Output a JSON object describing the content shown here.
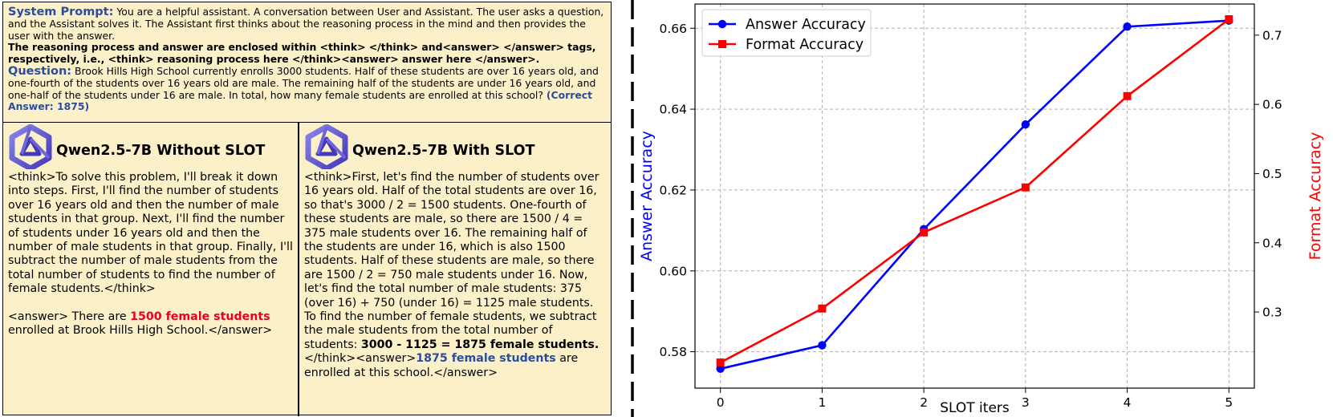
{
  "prompt": {
    "system_label": "System Prompt:",
    "system_text": " You are a helpful assistant. A conversation between User and Assistant. The user asks a question, and the Assistant solves it. The Assistant first thinks about the reasoning process in the mind and then provides the user with the answer.",
    "format_text": "The reasoning process and answer are enclosed within <think> </think> and<answer> </answer> tags, respectively, i.e., <think> reasoning process here </think><answer> answer here </answer>.",
    "question_label": "Question:",
    "question_text": " Brook Hills High School currently enrolls 3000 students. Half of these students are over 16 years old, and one-fourth of the students over 16 years old are male. The remaining half of the students are under 16 years old, and one-half of the students under 16 are male. In total, how many female students are enrolled at this school? ",
    "correct_answer": "(Correct Answer: 1875)"
  },
  "without_slot": {
    "title": "Qwen2.5-7B Without SLOT",
    "think": "<think>To solve this problem, I'll break it down into steps. First, I'll find the number of students over 16 years old and then the number of male students in that group. Next, I'll find the number of students under 16 years old and then the number of male students in that group. Finally, I'll subtract the number of male students from the total number of students to find the number of female students.</think>",
    "answer_pre": "<answer> There are ",
    "answer_highlight": "1500 female students",
    "answer_post": " enrolled at Brook Hills High School.</answer>"
  },
  "with_slot": {
    "title": "Qwen2.5-7B With SLOT",
    "think": "<think>First, let's find the number of students over 16 years old. Half of the total students are over 16, so that's 3000 / 2 = 1500 students. One-fourth of these students are male, so there are 1500 / 4 = 375 male students over 16. The remaining half of the students are under 16, which is also 1500 students. Half of these students are male, so there are 1500 / 2 = 750 male students under 16. Now, let's find the total number of male students: 375 (over 16) + 750 (under 16) = 1125 male students. To find the number of female students, we subtract the male students from the total number of students: ",
    "think_bold": "3000 - 1125 = 1875 female students.",
    "tail": " </think><answer>",
    "answer_highlight": "1875 female students",
    "answer_post": " are enrolled at this school.</answer>"
  },
  "colors": {
    "panel_bg": "#fcf0c9",
    "prompt_blue": "#2c4c9e",
    "highlight_red": "#e8001c",
    "answer_series": "#0000ff",
    "format_series": "#ff0000"
  },
  "chart_data": {
    "type": "line",
    "x": [
      0,
      1,
      2,
      3,
      4,
      5
    ],
    "xlabel": "SLOT iters",
    "x_ticks": [
      "0",
      "1",
      "2",
      "3",
      "4",
      "5"
    ],
    "xlim": [
      -0.25,
      5.25
    ],
    "grid": true,
    "legend_position": "top-left",
    "series": [
      {
        "name": "Answer Accuracy",
        "axis": "left",
        "marker": "circle",
        "color": "#0000ff",
        "values": [
          0.5758,
          0.5816,
          0.6103,
          0.6362,
          0.6604,
          0.6619
        ]
      },
      {
        "name": "Format Accuracy",
        "axis": "right",
        "marker": "square",
        "color": "#ff0000",
        "values": [
          0.227,
          0.305,
          0.415,
          0.48,
          0.612,
          0.723
        ]
      }
    ],
    "y_left": {
      "label": "Answer Accuracy",
      "ticks": [
        0.58,
        0.6,
        0.62,
        0.64,
        0.66
      ],
      "tick_labels": [
        "0.58",
        "0.60",
        "0.62",
        "0.64",
        "0.66"
      ],
      "lim": [
        0.571,
        0.666
      ]
    },
    "y_right": {
      "label": "Format Accuracy",
      "ticks": [
        0.3,
        0.4,
        0.5,
        0.6,
        0.7
      ],
      "tick_labels": [
        "0.3",
        "0.4",
        "0.5",
        "0.6",
        "0.7"
      ],
      "lim": [
        0.19,
        0.745
      ]
    }
  }
}
